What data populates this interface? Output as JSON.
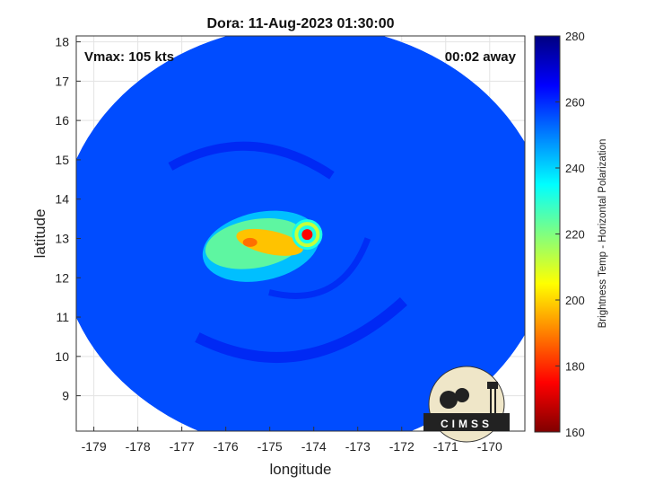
{
  "chart_data": {
    "type": "heatmap",
    "title": "Dora: 11-Aug-2023 01:30:00",
    "xlabel": "longitude",
    "ylabel": "latitude",
    "xlim": [
      -179.4,
      -169.2
    ],
    "ylim": [
      8.1,
      18.15
    ],
    "x_ticks": [
      -179,
      -178,
      -177,
      -176,
      -175,
      -174,
      -173,
      -172,
      -171,
      -170
    ],
    "y_ticks": [
      9,
      10,
      11,
      12,
      13,
      14,
      15,
      16,
      17,
      18
    ],
    "annotations": {
      "vmax": "Vmax: 105 kts",
      "time_away": "00:02 away"
    },
    "grid": true,
    "colorbar": {
      "label": "Brightness Temp - Horizontal Polarization",
      "range": [
        160,
        280
      ],
      "ticks": [
        160,
        180,
        200,
        220,
        240,
        260,
        280
      ],
      "colormap": "jet"
    },
    "swath": {
      "center_lon": -174.2,
      "center_lat": 13.0,
      "radius_deg": 5.6
    },
    "storm_features": [
      {
        "name": "eye",
        "lon": -174.15,
        "lat": 13.1,
        "tb": 175
      },
      {
        "name": "eyewall-ring",
        "lon": -174.15,
        "lat": 13.1,
        "tb": 212
      },
      {
        "name": "rainband-core",
        "lon": -175.0,
        "lat": 12.9,
        "tb": 198
      },
      {
        "name": "rainband-outer",
        "lon": -175.2,
        "lat": 12.8,
        "tb": 222
      }
    ],
    "background_tb": 256,
    "logo_text": "CIMSS"
  }
}
